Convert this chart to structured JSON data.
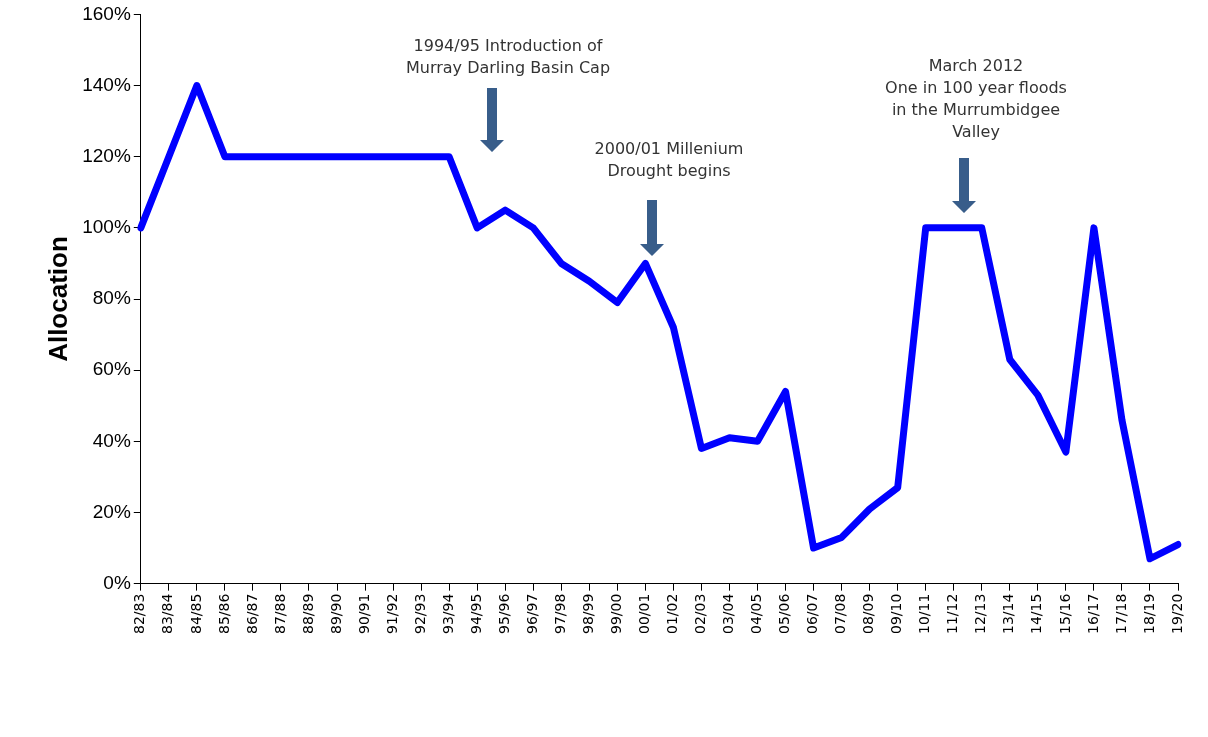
{
  "chart_data": {
    "type": "line",
    "ylabel": "Allocation",
    "categories": [
      "82/83",
      "83/84",
      "84/85",
      "85/86",
      "86/87",
      "87/88",
      "88/89",
      "89/90",
      "90/91",
      "91/92",
      "92/93",
      "93/94",
      "94/95",
      "95/96",
      "96/97",
      "97/98",
      "98/99",
      "99/00",
      "00/01",
      "01/02",
      "02/03",
      "03/04",
      "04/05",
      "05/06",
      "06/07",
      "07/08",
      "08/09",
      "09/10",
      "10/11",
      "11/12",
      "12/13",
      "13/14",
      "14/15",
      "15/16",
      "16/17",
      "17/18",
      "18/19",
      "19/20"
    ],
    "series": [
      {
        "color": "#0000ff",
        "values": [
          100,
          120,
          140,
          120,
          120,
          120,
          120,
          120,
          120,
          120,
          120,
          120,
          100,
          105,
          100,
          90,
          85,
          79,
          90,
          72,
          38,
          41,
          40,
          54,
          10,
          13,
          21,
          27,
          100,
          100,
          100,
          63,
          53,
          37,
          100,
          46,
          7,
          11
        ]
      }
    ],
    "ylim": [
      0,
      160
    ],
    "yticks": [
      {
        "value": 0,
        "label": "0%"
      },
      {
        "value": 20,
        "label": "20%"
      },
      {
        "value": 40,
        "label": "40%"
      },
      {
        "value": 60,
        "label": "60%"
      },
      {
        "value": 80,
        "label": "80%"
      },
      {
        "value": 100,
        "label": "100%"
      },
      {
        "value": 120,
        "label": "120%"
      },
      {
        "value": 140,
        "label": "140%"
      },
      {
        "value": 160,
        "label": "160%"
      }
    ],
    "grid": false,
    "legend": false,
    "marker": "none",
    "line_style": "solid",
    "annotations": [
      "1994/95 Introduction of\nMurray Darling Basin Cap",
      "2000/01 Millenium\nDrought begins",
      "March 2012\nOne in 100 year floods\nin the Murrumbidgee\nValley"
    ]
  }
}
